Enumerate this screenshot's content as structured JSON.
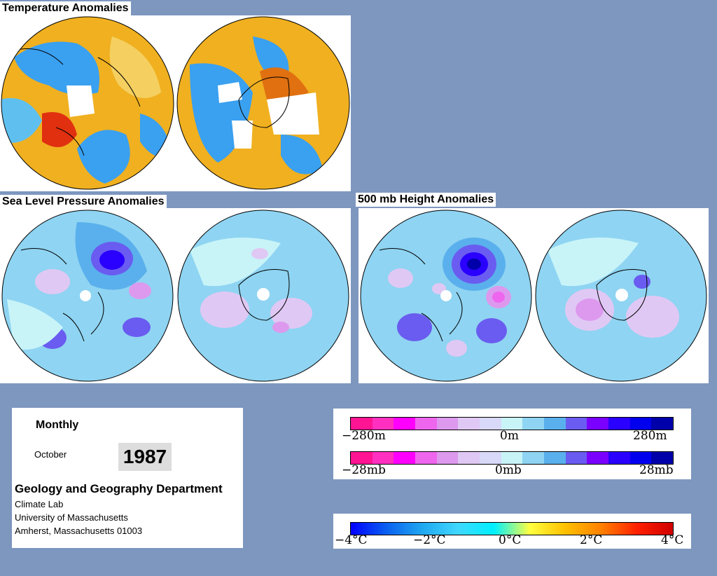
{
  "titles": {
    "temperature": "Temperature Anomalies",
    "slp": "Sea Level Pressure Anomalies",
    "height": "500 mb Height Anomalies"
  },
  "info": {
    "period": "Monthly",
    "month": "October",
    "year": "1987",
    "department": "Geology and Geography Department",
    "lab": "Climate Lab",
    "university": "University of Massachusetts",
    "address": "Amherst, Massachusetts 01003"
  },
  "legend_height": {
    "low": "−280m",
    "mid": "0m",
    "high": "280m",
    "colors": [
      "#ff1493",
      "#ff30c0",
      "#ff00ff",
      "#ee66ee",
      "#dd99ee",
      "#e0c8f4",
      "#d8d8f8",
      "#c8f4f8",
      "#8fd4f2",
      "#5ab0ec",
      "#6a5cf0",
      "#7a00ff",
      "#2a00ff",
      "#0000ee",
      "#0000aa"
    ]
  },
  "legend_pressure": {
    "low": "−28mb",
    "mid": "0mb",
    "high": "28mb"
  },
  "legend_temp": {
    "ticks": [
      "−4°C",
      "−2°C",
      "0°C",
      "2°C",
      "4°C"
    ],
    "stops": [
      "#0000ff",
      "#0a60f0",
      "#20a8f0",
      "#40d8ff",
      "#00f0ff",
      "#ffff40",
      "#ffc000",
      "#ff8000",
      "#ff2000",
      "#d00000"
    ]
  },
  "colors": {
    "background": "#7d97bf",
    "cool": "#3aa0f0",
    "warm": "#f0c020"
  }
}
